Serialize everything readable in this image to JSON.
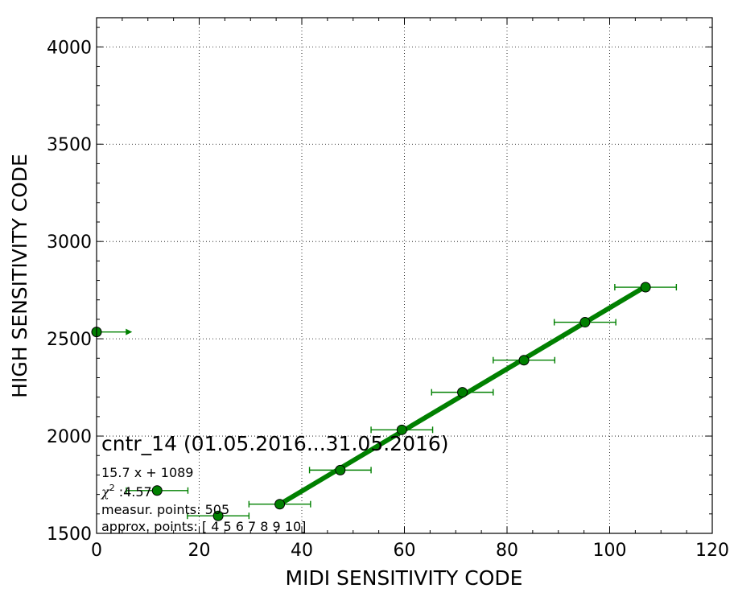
{
  "chart_data": {
    "type": "scatter",
    "xlabel": "MIDI SENSITIVITY CODE",
    "ylabel": "HIGH SENSITIVITY CODE",
    "xlim": [
      0,
      120
    ],
    "ylim": [
      1500,
      4150
    ],
    "xticks": [
      0,
      20,
      40,
      60,
      80,
      100,
      120
    ],
    "yticks": [
      1500,
      2000,
      2500,
      3000,
      3500,
      4000
    ],
    "grid": true,
    "color": "#008000",
    "points": [
      {
        "x": 0,
        "y": 2535,
        "xerr_lo": 0,
        "xerr_hi": 6,
        "open_right": true
      },
      {
        "x": 11.8,
        "y": 1720,
        "xerr": 6
      },
      {
        "x": 23.7,
        "y": 1590,
        "xerr": 6
      },
      {
        "x": 35.7,
        "y": 1650,
        "xerr": 6
      },
      {
        "x": 47.5,
        "y": 1825,
        "xerr": 6
      },
      {
        "x": 59.5,
        "y": 2032,
        "xerr": 6
      },
      {
        "x": 71.3,
        "y": 2225,
        "xerr": 6
      },
      {
        "x": 83.3,
        "y": 2390,
        "xerr": 6
      },
      {
        "x": 95.2,
        "y": 2585,
        "xerr": 6
      },
      {
        "x": 107.0,
        "y": 2765,
        "xerr": 6
      }
    ],
    "fit": {
      "slope": 15.7,
      "intercept": 1089,
      "x_range": [
        35.7,
        107.0
      ]
    },
    "annotations": {
      "title": "cntr_14 (01.05.2016...31.05.2016)",
      "equation": "15.7 x + 1089",
      "chi2_label": "χ",
      "chi2_sup": "2",
      "chi2_value": ":4.57",
      "measur": "measur. points: 505",
      "approx": "approx. points: [ 4  5  6  7  8  9 10]"
    }
  }
}
